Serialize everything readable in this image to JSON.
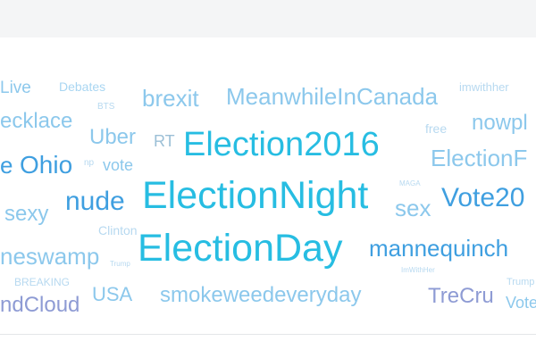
{
  "word_cloud": {
    "words": [
      {
        "text": "Election2016",
        "color": "#27bde2"
      },
      {
        "text": "ElectionNight",
        "color": "#27bde2"
      },
      {
        "text": "ElectionDay",
        "color": "#27bde2"
      },
      {
        "text": "MeanwhileInCanada",
        "color": "#8cc8ec"
      },
      {
        "text": "brexit",
        "color": "#8cc8ec"
      },
      {
        "text": "Live",
        "color": "#8cc8ec"
      },
      {
        "text": "Debates",
        "color": "#a9d6f2"
      },
      {
        "text": "imwithher",
        "color": "#b7d9f0"
      },
      {
        "text": "ecklace",
        "color": "#8cc8ec"
      },
      {
        "text": "BTS",
        "color": "#b7d9f0"
      },
      {
        "text": "nowpl",
        "color": "#8cc8ec"
      },
      {
        "text": "free",
        "color": "#b7d9f0"
      },
      {
        "text": "Uber",
        "color": "#8cc8ec"
      },
      {
        "text": "RT",
        "color": "#9bbfd6"
      },
      {
        "text": "ElectionF",
        "color": "#8cc8ec"
      },
      {
        "text": "e",
        "color": "#3f9fe0"
      },
      {
        "text": "Ohio",
        "color": "#3f9fe0"
      },
      {
        "text": "np",
        "color": "#b7d9f0"
      },
      {
        "text": "vote",
        "color": "#8cc8ec"
      },
      {
        "text": "MAGA",
        "color": "#b7d9f0"
      },
      {
        "text": "nude",
        "color": "#3f9fe0"
      },
      {
        "text": "Vote20",
        "color": "#3f9fe0"
      },
      {
        "text": "sexy",
        "color": "#8cc8ec"
      },
      {
        "text": "sex",
        "color": "#8cc8ec"
      },
      {
        "text": "Clinton",
        "color": "#b7d9f0"
      },
      {
        "text": "mannequinch",
        "color": "#3f9fe0"
      },
      {
        "text": "neswamp",
        "color": "#8cc8ec"
      },
      {
        "text": "Trump",
        "color": "#b7d9f0"
      },
      {
        "text": "BREAKING",
        "color": "#b7d9f0"
      },
      {
        "text": "ImWithHer",
        "color": "#b7d9f0"
      },
      {
        "text": "Trump",
        "color": "#b7d9f0"
      },
      {
        "text": "USA",
        "color": "#8cc8ec"
      },
      {
        "text": "smokeweedeveryday",
        "color": "#8cc8ec"
      },
      {
        "text": "TreCru",
        "color": "#8e9bd4"
      },
      {
        "text": "Vote",
        "color": "#8cc8ec"
      },
      {
        "text": "ndCloud",
        "color": "#8e9bd4"
      }
    ]
  }
}
